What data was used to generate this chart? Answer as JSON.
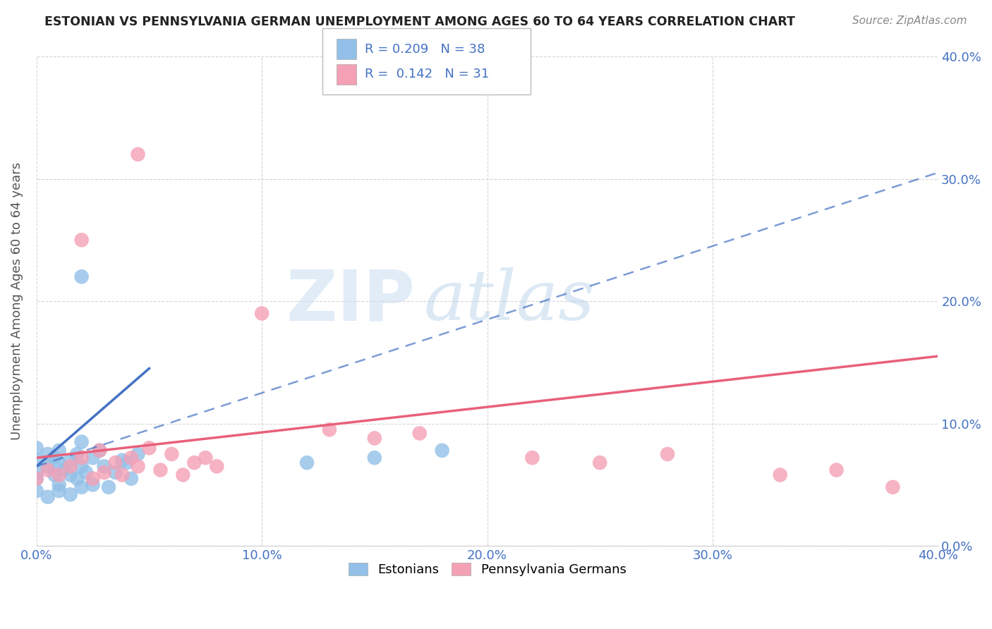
{
  "title": "ESTONIAN VS PENNSYLVANIA GERMAN UNEMPLOYMENT AMONG AGES 60 TO 64 YEARS CORRELATION CHART",
  "source": "Source: ZipAtlas.com",
  "ylabel": "Unemployment Among Ages 60 to 64 years",
  "xmin": 0.0,
  "xmax": 0.4,
  "ymin": 0.0,
  "ymax": 0.4,
  "ytick_labels": [
    "0.0%",
    "10.0%",
    "20.0%",
    "30.0%",
    "40.0%"
  ],
  "ytick_values": [
    0.0,
    0.1,
    0.2,
    0.3,
    0.4
  ],
  "xtick_labels": [
    "0.0%",
    "10.0%",
    "20.0%",
    "30.0%",
    "40.0%"
  ],
  "xtick_values": [
    0.0,
    0.1,
    0.2,
    0.3,
    0.4
  ],
  "blue_color": "#92C0E8",
  "pink_color": "#F4A0B5",
  "blue_line_color": "#4472C4",
  "pink_line_color": "#E8607A",
  "legend_label1": "Estonians",
  "legend_label2": "Pennsylvania Germans",
  "R1": 0.209,
  "N1": 38,
  "R2": 0.142,
  "N2": 31,
  "blue_dots": [
    [
      0.0,
      0.06
    ],
    [
      0.0,
      0.07
    ],
    [
      0.0,
      0.08
    ],
    [
      0.0,
      0.055
    ],
    [
      0.005,
      0.065
    ],
    [
      0.005,
      0.075
    ],
    [
      0.008,
      0.072
    ],
    [
      0.008,
      0.058
    ],
    [
      0.01,
      0.068
    ],
    [
      0.01,
      0.078
    ],
    [
      0.01,
      0.05
    ],
    [
      0.012,
      0.062
    ],
    [
      0.015,
      0.07
    ],
    [
      0.015,
      0.058
    ],
    [
      0.018,
      0.075
    ],
    [
      0.018,
      0.055
    ],
    [
      0.02,
      0.065
    ],
    [
      0.02,
      0.085
    ],
    [
      0.022,
      0.06
    ],
    [
      0.025,
      0.072
    ],
    [
      0.028,
      0.078
    ],
    [
      0.03,
      0.065
    ],
    [
      0.032,
      0.048
    ],
    [
      0.035,
      0.06
    ],
    [
      0.038,
      0.07
    ],
    [
      0.04,
      0.068
    ],
    [
      0.042,
      0.055
    ],
    [
      0.045,
      0.075
    ],
    [
      0.0,
      0.045
    ],
    [
      0.005,
      0.04
    ],
    [
      0.01,
      0.045
    ],
    [
      0.015,
      0.042
    ],
    [
      0.02,
      0.048
    ],
    [
      0.025,
      0.05
    ],
    [
      0.02,
      0.22
    ],
    [
      0.12,
      0.068
    ],
    [
      0.15,
      0.072
    ],
    [
      0.18,
      0.078
    ]
  ],
  "pink_dots": [
    [
      0.02,
      0.25
    ],
    [
      0.045,
      0.32
    ],
    [
      0.0,
      0.055
    ],
    [
      0.005,
      0.062
    ],
    [
      0.01,
      0.058
    ],
    [
      0.015,
      0.065
    ],
    [
      0.02,
      0.072
    ],
    [
      0.025,
      0.055
    ],
    [
      0.028,
      0.078
    ],
    [
      0.03,
      0.06
    ],
    [
      0.035,
      0.068
    ],
    [
      0.038,
      0.058
    ],
    [
      0.042,
      0.072
    ],
    [
      0.045,
      0.065
    ],
    [
      0.05,
      0.08
    ],
    [
      0.055,
      0.062
    ],
    [
      0.06,
      0.075
    ],
    [
      0.065,
      0.058
    ],
    [
      0.07,
      0.068
    ],
    [
      0.075,
      0.072
    ],
    [
      0.08,
      0.065
    ],
    [
      0.1,
      0.19
    ],
    [
      0.13,
      0.095
    ],
    [
      0.15,
      0.088
    ],
    [
      0.17,
      0.092
    ],
    [
      0.22,
      0.072
    ],
    [
      0.25,
      0.068
    ],
    [
      0.28,
      0.075
    ],
    [
      0.33,
      0.058
    ],
    [
      0.355,
      0.062
    ],
    [
      0.38,
      0.048
    ]
  ],
  "blue_trendline": [
    0.0,
    0.065,
    0.05,
    0.145
  ],
  "blue_dashed_trendline": [
    0.0,
    0.065,
    0.4,
    0.305
  ],
  "pink_trendline": [
    0.0,
    0.072,
    0.4,
    0.155
  ],
  "watermark_zip": "ZIP",
  "watermark_atlas": "atlas",
  "background_color": "#FFFFFF",
  "grid_color": "#CCCCCC",
  "title_color": "#222222",
  "axis_label_color": "#555555",
  "tick_color": "#4472C4",
  "source_color": "#888888",
  "legend_text_color": "#000000",
  "figsize": [
    14.06,
    8.92
  ],
  "dpi": 100
}
